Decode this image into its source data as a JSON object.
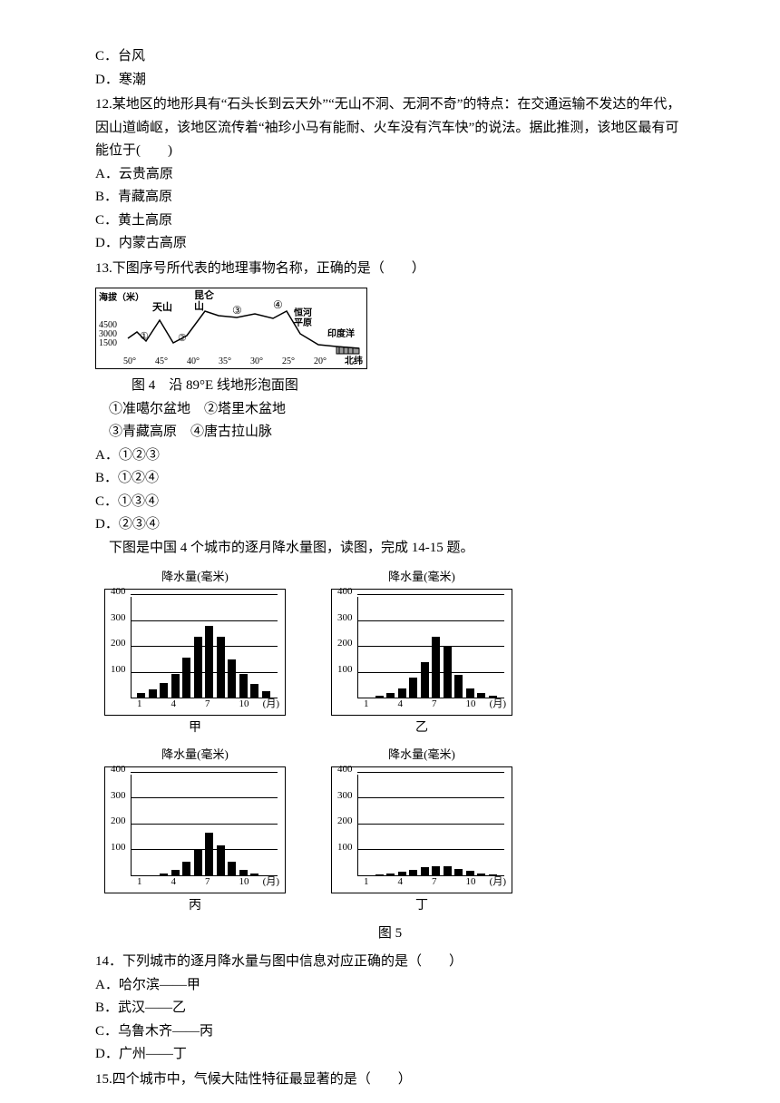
{
  "q11_options": {
    "c": "C．台风",
    "d": "D．寒潮"
  },
  "q12": {
    "stem": "12.某地区的地形具有“石头长到云天外”“无山不洞、无洞不奇”的特点：在交通运输不发达的年代，因山道崎岖，该地区流传着“袖珍小马有能耐、火车没有汽车快”的说法。据此推测，该地区最有可能位于(　　)",
    "a": "A．云贵高原",
    "b": "B．青藏高原",
    "c": "C．黄土高原",
    "d": "D．内蒙古高原"
  },
  "q13": {
    "stem": "13.下图序号所代表的地理事物名称，正确的是（　　）",
    "fig_caption": "图 4　沿 89°E 线地形泡面图",
    "items": "①准噶尔盆地　②塔里木盆地",
    "items2": "③青藏高原　④唐古拉山脉",
    "a": "A．①②③",
    "b": "B．①②④",
    "c": "C．①③④",
    "d": "D．②③④",
    "profile": {
      "y_labels": [
        "4500",
        "3000",
        "1500"
      ],
      "y_axis_label": "海拔（米）",
      "x_labels": [
        "50°",
        "45°",
        "40°",
        "35°",
        "30°",
        "25°",
        "20°"
      ],
      "x_axis_label": "北纬",
      "features": [
        "天山",
        "昆仑山",
        "③",
        "④",
        "恒河平原",
        "印度洋"
      ],
      "markers": [
        "①",
        "②"
      ]
    }
  },
  "intro_14_15": "下图是中国 4 个城市的逐月降水量图，读图，完成 14-15 题。",
  "charts": {
    "axis_title": "降水量(毫米)",
    "y_ticks": [
      100,
      200,
      300,
      400
    ],
    "x_ticks": [
      "1",
      "4",
      "7",
      "10"
    ],
    "x_unit": "(月)",
    "jia": {
      "label": "甲",
      "values": [
        20,
        35,
        60,
        95,
        160,
        240,
        280,
        240,
        150,
        95,
        55,
        30
      ]
    },
    "yi": {
      "label": "乙",
      "values": [
        5,
        10,
        20,
        40,
        80,
        140,
        240,
        200,
        90,
        40,
        20,
        10
      ]
    },
    "bing": {
      "label": "丙",
      "values": [
        2,
        5,
        10,
        25,
        55,
        100,
        170,
        120,
        55,
        25,
        10,
        5
      ]
    },
    "ding": {
      "label": "丁",
      "values": [
        5,
        8,
        12,
        18,
        25,
        35,
        40,
        38,
        28,
        20,
        12,
        8
      ]
    }
  },
  "fig5_caption": "图 5",
  "q14": {
    "stem": "14．下列城市的逐月降水量与图中信息对应正确的是（　　）",
    "a": "A．哈尔滨——甲",
    "b": "B．武汉——乙",
    "c": "C．乌鲁木齐——丙",
    "d": "D．广州——丁"
  },
  "q15": {
    "stem": "15.四个城市中，气候大陆性特征最显著的是（　　）"
  },
  "style": {
    "max_y": 400,
    "chart_inner_height": 114,
    "bar_origin_left": 35,
    "bar_spacing": 12.5
  }
}
